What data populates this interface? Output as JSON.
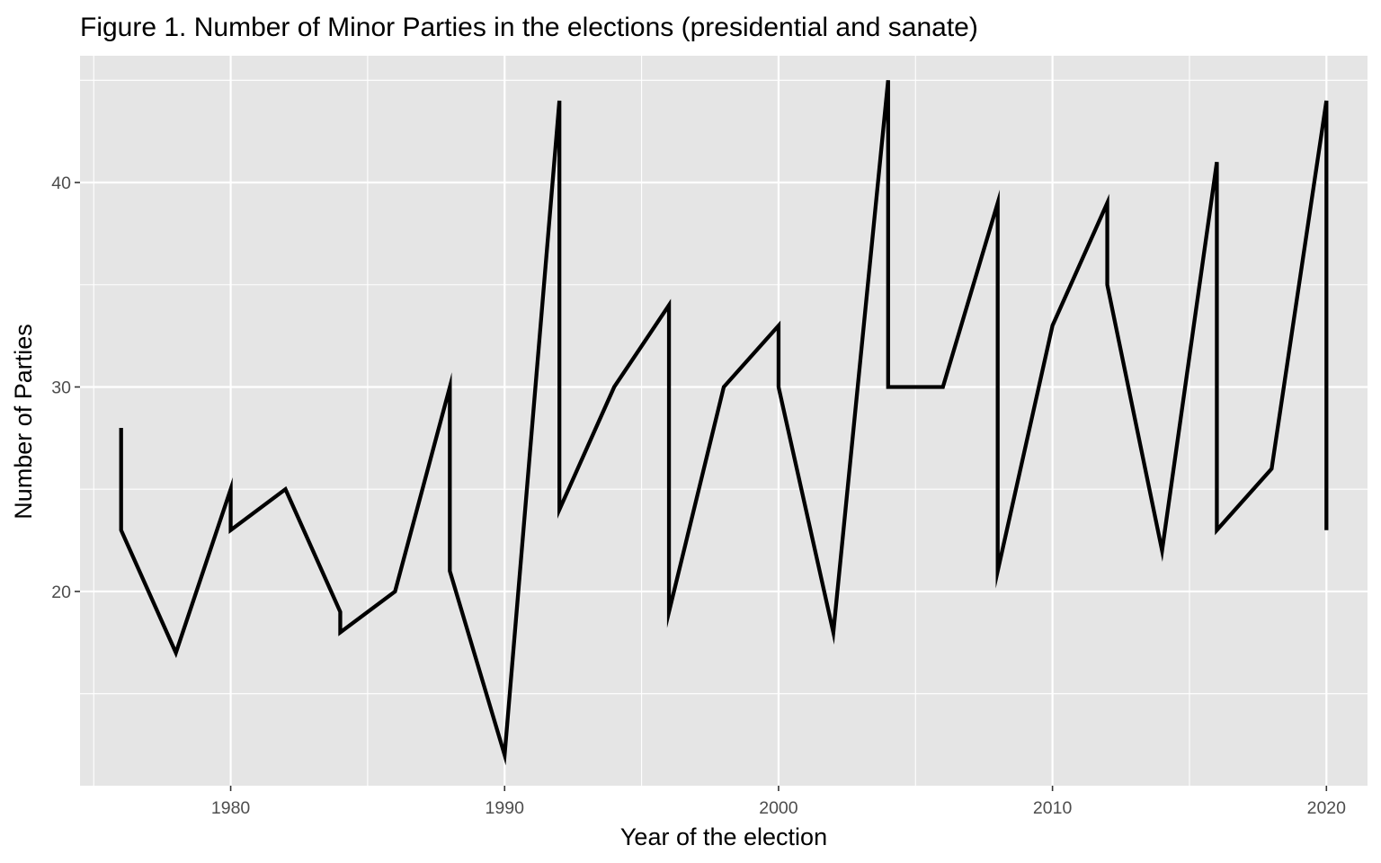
{
  "chart_data": {
    "type": "line",
    "title": "Figure 1. Number of Minor Parties in the elections (presidential and sanate)",
    "xlabel": "Year of the election",
    "ylabel": "Number of Parties",
    "xlim": [
      1974.5,
      2021.5
    ],
    "ylim": [
      10.5,
      46.2
    ],
    "x_ticks": [
      1980,
      1990,
      2000,
      2010,
      2020
    ],
    "y_ticks": [
      20,
      30,
      40
    ],
    "x_minor_ticks": [
      1975,
      1985,
      1995,
      2005,
      2015
    ],
    "y_minor_ticks": [
      15,
      25,
      35,
      45
    ],
    "grid": true,
    "legend": "none",
    "colors": {
      "panel_background": "#e5e5e5",
      "grid": "#ffffff",
      "line": "#000000",
      "tick_label": "#4d4d4d"
    },
    "series": [
      {
        "x": [
          1976,
          1976,
          1978,
          1980,
          1980,
          1982,
          1984,
          1984,
          1986,
          1988,
          1988,
          1990,
          1992,
          1992,
          1994,
          1996,
          1996,
          1998,
          2000,
          2000,
          2002,
          2004,
          2004,
          2006,
          2008,
          2008,
          2010,
          2012,
          2012,
          2014,
          2016,
          2016,
          2018,
          2020,
          2020
        ],
        "y": [
          28,
          23,
          17,
          25,
          23,
          25,
          19,
          18,
          20,
          30,
          21,
          12,
          44,
          24,
          30,
          34,
          19,
          30,
          33,
          30,
          18,
          45,
          30,
          30,
          39,
          21,
          33,
          39,
          35,
          22,
          41,
          23,
          26,
          44,
          23
        ]
      }
    ]
  }
}
